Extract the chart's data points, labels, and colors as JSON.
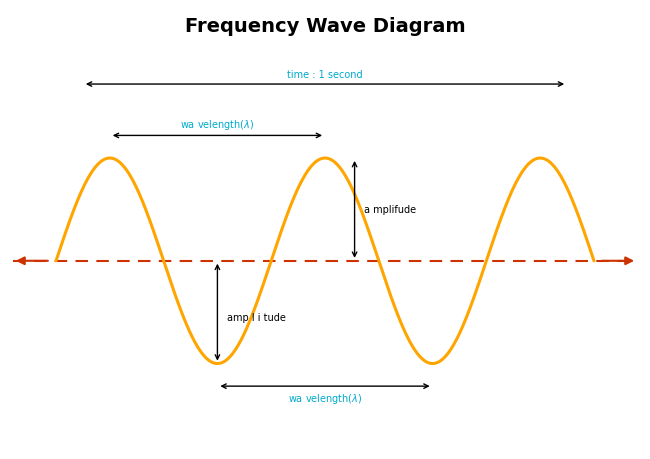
{
  "title": "Frequency Wave Diagram",
  "title_fontsize": 14,
  "title_fontweight": "bold",
  "wave_color": "#FFA500",
  "wave_linewidth": 2.2,
  "dash_color": "#CC3300",
  "arrow_color": "#000000",
  "time_label_color": "#00AACC",
  "wavelength_label_color": "#00AACC",
  "amplitude_label_color": "#000000",
  "bg_color": "#FFFFFF",
  "amplitude": 1.0,
  "period": 4.0,
  "x_start": -0.5,
  "x_end": 10.5,
  "ylim": [
    -1.75,
    2.1
  ],
  "xlim": [
    -0.8,
    10.8
  ],
  "wave_x_start": 0.0,
  "wave_x_end": 10.0,
  "num_points": 1000
}
